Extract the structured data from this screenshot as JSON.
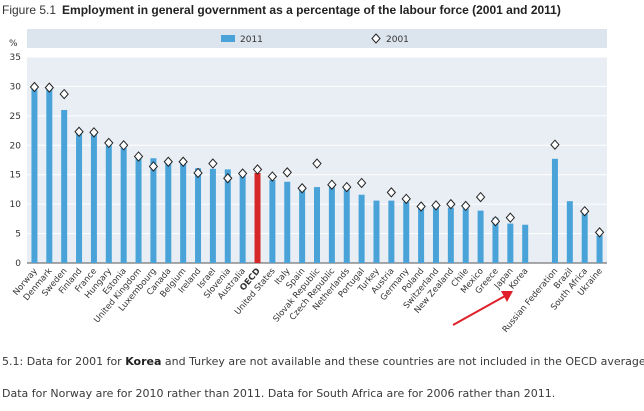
{
  "figure": {
    "label": "Figure  5.1",
    "title": "Employment in general government as a percentage of the labour force (2001 and 2011)"
  },
  "notes": [
    {
      "prefix": "5.1: Data for 2001 for ",
      "bold": "Korea",
      "suffix": " and Turkey are not available and these countries are not included in the OECD average."
    },
    {
      "prefix": "Data for Norway are for 2010 rather than 2011. Data for South Africa are for 2006 rather than 2011.",
      "bold": "",
      "suffix": ""
    }
  ],
  "colors": {
    "bar": "#4aa3d8",
    "highlight": "#d62728",
    "plot_bg": "#e8eef4",
    "header_bg": "#dce5ee",
    "grid": "#ffffff",
    "arrow": "#e0202a"
  },
  "chart_data": {
    "type": "bar",
    "ylabel": "%",
    "ylim": [
      0,
      35
    ],
    "yticks": [
      0,
      5,
      10,
      15,
      20,
      25,
      30,
      35
    ],
    "grid": true,
    "legend_position": "top",
    "highlight_category": "OECD",
    "annotation": "red arrow pointing to Korea",
    "categories": [
      "Norway",
      "Denmark",
      "Sweden",
      "Finland",
      "France",
      "Hungary",
      "Estonia",
      "United Kingdom",
      "Luxembourg",
      "Canada",
      "Belgium",
      "Ireland",
      "Israel",
      "Slovenia",
      "Australia",
      "OECD",
      "United States",
      "Italy",
      "Spain",
      "Slovak Republic",
      "Czech Republic",
      "Netherlands",
      "Portugal",
      "Turkey",
      "Austria",
      "Germany",
      "Poland",
      "Switzerland",
      "New Zealand",
      "Chile",
      "Mexico",
      "Greece",
      "Japan",
      "Korea",
      "",
      "Russian Federation",
      "Brazil",
      "South Africa",
      "Ukraine"
    ],
    "series": [
      {
        "name": "2011",
        "style": "bar",
        "values": [
          29.8,
          29.5,
          26.0,
          22.2,
          21.9,
          20.0,
          19.6,
          17.9,
          17.8,
          17.2,
          16.9,
          16.1,
          16.0,
          15.9,
          15.5,
          15.3,
          14.1,
          13.8,
          12.8,
          12.9,
          12.9,
          12.6,
          11.6,
          10.6,
          10.6,
          10.4,
          9.6,
          9.5,
          9.4,
          9.3,
          8.9,
          7.7,
          6.7,
          6.5,
          null,
          17.7,
          10.5,
          8.4,
          4.7
        ]
      },
      {
        "name": "2001",
        "style": "diamond",
        "values": [
          29.9,
          29.8,
          28.7,
          22.3,
          22.2,
          20.4,
          20.0,
          18.1,
          16.4,
          17.2,
          17.2,
          15.3,
          16.9,
          14.4,
          15.2,
          15.9,
          14.7,
          15.4,
          12.7,
          16.9,
          13.3,
          12.9,
          13.6,
          null,
          12.0,
          10.9,
          9.6,
          9.8,
          10.0,
          9.7,
          11.2,
          7.1,
          7.7,
          null,
          null,
          20.1,
          null,
          8.8,
          5.2
        ]
      }
    ]
  }
}
